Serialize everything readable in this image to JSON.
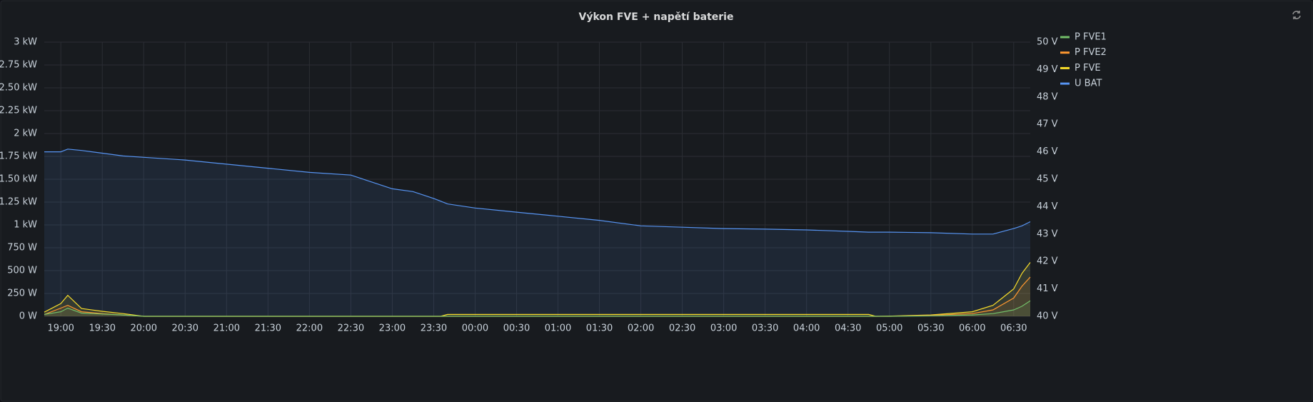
{
  "chart_data": {
    "type": "line",
    "title": "Výkon FVE + napětí baterie",
    "x": [
      "18:48",
      "19:00",
      "19:05",
      "19:15",
      "19:30",
      "19:45",
      "20:00",
      "20:30",
      "21:00",
      "21:30",
      "22:00",
      "22:30",
      "22:45",
      "23:00",
      "23:15",
      "23:30",
      "23:35",
      "23:40",
      "00:00",
      "00:30",
      "01:00",
      "01:30",
      "02:00",
      "02:30",
      "03:00",
      "03:30",
      "04:00",
      "04:30",
      "04:45",
      "04:50",
      "05:00",
      "05:30",
      "06:00",
      "06:15",
      "06:30",
      "06:36",
      "06:42"
    ],
    "xlim": [
      "18:48",
      "06:42"
    ],
    "xticks": [
      "19:00",
      "19:30",
      "20:00",
      "20:30",
      "21:00",
      "21:30",
      "22:00",
      "22:30",
      "23:00",
      "23:30",
      "00:00",
      "00:30",
      "01:00",
      "01:30",
      "02:00",
      "02:30",
      "03:00",
      "03:30",
      "04:00",
      "04:30",
      "05:00",
      "05:30",
      "06:00",
      "06:30"
    ],
    "ylim": [
      0,
      3000
    ],
    "yticks": [
      {
        "value": 0,
        "label": "0 W"
      },
      {
        "value": 250,
        "label": "250 W"
      },
      {
        "value": 500,
        "label": "500 W"
      },
      {
        "value": 750,
        "label": "750 W"
      },
      {
        "value": 1000,
        "label": "1 kW"
      },
      {
        "value": 1250,
        "label": "1.25 kW"
      },
      {
        "value": 1500,
        "label": "1.50 kW"
      },
      {
        "value": 1750,
        "label": "1.75 kW"
      },
      {
        "value": 2000,
        "label": "2 kW"
      },
      {
        "value": 2250,
        "label": "2.25 kW"
      },
      {
        "value": 2500,
        "label": "2.50 kW"
      },
      {
        "value": 2750,
        "label": "2.75 kW"
      },
      {
        "value": 3000,
        "label": "3 kW"
      }
    ],
    "y2lim": [
      40,
      50
    ],
    "y2ticks": [
      {
        "value": 40,
        "label": "40 V"
      },
      {
        "value": 41,
        "label": "41 V"
      },
      {
        "value": 42,
        "label": "42 V"
      },
      {
        "value": 43,
        "label": "43 V"
      },
      {
        "value": 44,
        "label": "44 V"
      },
      {
        "value": 45,
        "label": "45 V"
      },
      {
        "value": 46,
        "label": "46 V"
      },
      {
        "value": 47,
        "label": "47 V"
      },
      {
        "value": 48,
        "label": "48 V"
      },
      {
        "value": 49,
        "label": "49 V"
      },
      {
        "value": 50,
        "label": "50 V"
      }
    ],
    "grid": true,
    "legend": "right",
    "series": [
      {
        "name": "P FVE1",
        "color": "#73bf69",
        "values": [
          20,
          50,
          90,
          35,
          25,
          15,
          0,
          0,
          0,
          0,
          0,
          0,
          0,
          0,
          0,
          0,
          0,
          0,
          0,
          0,
          0,
          0,
          0,
          0,
          0,
          0,
          0,
          0,
          0,
          0,
          0,
          5,
          15,
          30,
          70,
          110,
          170
        ]
      },
      {
        "name": "P FVE2",
        "color": "#ff9830",
        "values": [
          20,
          90,
          120,
          50,
          30,
          15,
          0,
          0,
          0,
          0,
          0,
          0,
          0,
          0,
          0,
          0,
          0,
          0,
          0,
          0,
          0,
          0,
          0,
          0,
          0,
          0,
          0,
          0,
          0,
          0,
          0,
          10,
          30,
          70,
          200,
          330,
          430
        ]
      },
      {
        "name": "P FVE",
        "color": "#fade2a",
        "values": [
          45,
          140,
          230,
          85,
          55,
          30,
          0,
          0,
          0,
          0,
          0,
          0,
          0,
          0,
          0,
          0,
          0,
          20,
          20,
          20,
          20,
          20,
          20,
          20,
          20,
          20,
          20,
          20,
          20,
          0,
          2,
          15,
          50,
          120,
          300,
          470,
          590
        ]
      },
      {
        "name": "U BAT",
        "color": "#5794f2",
        "axis": "y2",
        "values": [
          46.0,
          46.0,
          46.1,
          46.05,
          45.95,
          45.85,
          45.8,
          45.7,
          45.55,
          45.4,
          45.25,
          45.15,
          44.9,
          44.65,
          44.55,
          44.3,
          44.2,
          44.1,
          43.95,
          43.8,
          43.65,
          43.5,
          43.3,
          43.25,
          43.2,
          43.18,
          43.15,
          43.1,
          43.07,
          43.07,
          43.07,
          43.05,
          43.0,
          43.0,
          43.2,
          43.3,
          43.45
        ]
      }
    ]
  }
}
